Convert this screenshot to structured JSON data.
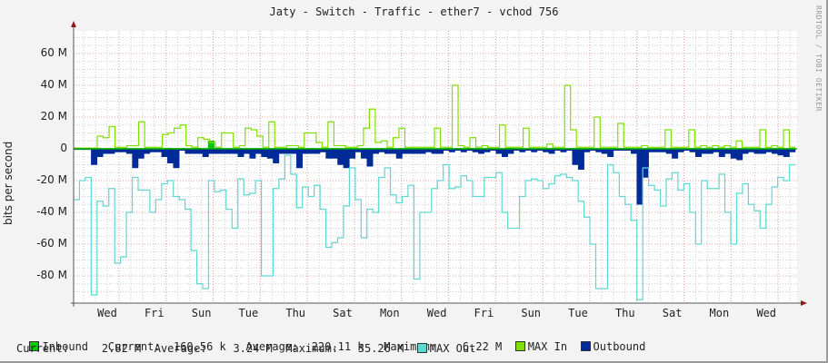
{
  "title": "Jaty - Switch - Traffic - ether7 - vchod 756",
  "watermark": "RRDTOOL / TOBI OETIKER",
  "chart_data": {
    "type": "area",
    "title": "Jaty - Switch - Traffic - ether7 - vchod 756",
    "xlabel": "",
    "ylabel": "bits per second",
    "ylim": [
      -95000000,
      72000000
    ],
    "grid": true,
    "legend_position": "bottom",
    "y_ticks": [
      "60 M",
      "40 M",
      "20 M",
      "0",
      "-20 M",
      "-40 M",
      "-60 M",
      "-80 M"
    ],
    "x_ticks": [
      "Wed",
      "Fri",
      "Sun",
      "Tue",
      "Thu",
      "Sat",
      "Mon",
      "Wed",
      "Fri",
      "Sun",
      "Tue",
      "Thu",
      "Sat",
      "Mon",
      "Wed"
    ],
    "step_note": "values in M bits/s, one per ~6.5px step (~6h), outbound shown below zero",
    "series": [
      {
        "name": "Inbound",
        "color": "#00cc00",
        "type": "area",
        "values": [
          0.3,
          0.3,
          0.3,
          0.3,
          0.3,
          0.3,
          0.3,
          0.3,
          0.3,
          0.3,
          0.3,
          0.3,
          0.3,
          0.3,
          0.3,
          0.5,
          0.3,
          0.3,
          0.3,
          0.3,
          0.5,
          0.3,
          5,
          0.5,
          0.3,
          0.3,
          0.3,
          0.3,
          0.3,
          0.3,
          0.3,
          0.3,
          0.3,
          0.3,
          0.3,
          0.3,
          0.3,
          0.3,
          0.3,
          0.3,
          0.3,
          0.3,
          0.3,
          0.3,
          0.3,
          0.3,
          0.3,
          0.3,
          0.3,
          0.3,
          0.3,
          0.3,
          0.3,
          0.3,
          0.3,
          0.3,
          0.3,
          0.3,
          0.3,
          0.3,
          0.3,
          0.3,
          0.3,
          0.3,
          0.3,
          0.3,
          0.3,
          0.3,
          0.3,
          0.3,
          0.3,
          0.5,
          0.3,
          0.3,
          0.3,
          0.3,
          0.3,
          0.3,
          0.3,
          0.3,
          0.3,
          0.3,
          0.3,
          0.3,
          0.3,
          0.3,
          0.3,
          0.3,
          0.3,
          0.3,
          0.3,
          0.3,
          0.3,
          0.3,
          0.3,
          0.3,
          0.3,
          0.3,
          0.3,
          0.3,
          0.3,
          0.3,
          0.3,
          0.3,
          0.3,
          0.3,
          0.3,
          0.3,
          0.3,
          0.3,
          0.3,
          0.3,
          0.3,
          0.3,
          0.3,
          0.3,
          0.3,
          0.3
        ]
      },
      {
        "name": "MAX In",
        "color": "#7fe000",
        "type": "line",
        "values": [
          0.5,
          0.5,
          0.5,
          0.5,
          8,
          7,
          14,
          1,
          1,
          2,
          2,
          17,
          1,
          1,
          1,
          9,
          10,
          13,
          15,
          2,
          1,
          7,
          6,
          4,
          1,
          10,
          10,
          1,
          2,
          13,
          12,
          8,
          1,
          17,
          1,
          1,
          2,
          2,
          1,
          10,
          10,
          4,
          1,
          17,
          2,
          2,
          1,
          1,
          2,
          13,
          25,
          4,
          5,
          1,
          7,
          13,
          1,
          1,
          1,
          1,
          1,
          13,
          1,
          1,
          40,
          2,
          1,
          7,
          1,
          2,
          1,
          1,
          15,
          1,
          1,
          1,
          13,
          1,
          1,
          1,
          3,
          1,
          1,
          40,
          12,
          1,
          1,
          1,
          20,
          1,
          1,
          1,
          16,
          1,
          1,
          1,
          2,
          1,
          1,
          1,
          12,
          1,
          1,
          1,
          12,
          1,
          2,
          1,
          2,
          1,
          2,
          1,
          5,
          1,
          1,
          1,
          12,
          1,
          2,
          1,
          12,
          1
        ]
      },
      {
        "name": "Outbound",
        "color": "#002a97",
        "type": "area",
        "values": [
          -0.5,
          -0.5,
          -0.5,
          -10,
          -5,
          -3,
          -3,
          -2,
          -2,
          -3,
          -12,
          -6,
          -3,
          -2,
          -2,
          -5,
          -9,
          -12,
          -1,
          -3,
          -3,
          -3,
          -5,
          -3,
          -3,
          -3,
          -3,
          -3,
          -5,
          -3,
          -6,
          -3,
          -5,
          -6,
          -9,
          -3,
          -3,
          -3,
          -12,
          -3,
          -3,
          -3,
          -2,
          -6,
          -6,
          -10,
          -12,
          -6,
          -2,
          -6,
          -11,
          -3,
          -2,
          -3,
          -3,
          -6,
          -3,
          -3,
          -3,
          -3,
          -2,
          -3,
          -3,
          -1,
          -2,
          -1,
          -2,
          -1,
          -2,
          -3,
          -2,
          -1,
          -3,
          -5,
          -3,
          -1,
          -2,
          -1,
          -2,
          -1,
          -2,
          -3,
          -1,
          -2,
          -1,
          -10,
          -13,
          -2,
          -1,
          -2,
          -3,
          -5,
          -1,
          -1,
          -1,
          -3,
          -35,
          -18,
          -2,
          -2,
          -2,
          -3,
          -6,
          -2,
          -1,
          -2,
          -5,
          -3,
          -3,
          -2,
          -5,
          -3,
          -6,
          -7,
          -3,
          -2,
          -3,
          -3,
          -2,
          -3,
          -4,
          -5,
          -2
        ]
      },
      {
        "name": "MAX Out",
        "color": "#5fd7d2",
        "type": "line",
        "values": [
          -32,
          -20,
          -18,
          -92,
          -33,
          -36,
          -25,
          -72,
          -68,
          -40,
          -18,
          -26,
          -26,
          -40,
          -32,
          -22,
          -20,
          -30,
          -32,
          -38,
          -64,
          -85,
          -88,
          -20,
          -27,
          -26,
          -38,
          -50,
          -19,
          -29,
          -28,
          -20,
          -80,
          -80,
          -25,
          -19,
          -4,
          -16,
          -37,
          -24,
          -30,
          -23,
          -38,
          -62,
          -59,
          -56,
          -36,
          -12,
          -32,
          -56,
          -38,
          -40,
          -18,
          -12,
          -29,
          -34,
          -30,
          -23,
          -82,
          -40,
          -40,
          -25,
          -20,
          -10,
          -25,
          -24,
          -17,
          -20,
          -30,
          -30,
          -18,
          -18,
          -15,
          -40,
          -50,
          -50,
          -30,
          -20,
          -19,
          -20,
          -25,
          -22,
          -17,
          -16,
          -18,
          -20,
          -33,
          -43,
          -60,
          -88,
          -88,
          -10,
          -15,
          -30,
          -35,
          -45,
          -95,
          -12,
          -23,
          -26,
          -36,
          -19,
          -15,
          -26,
          -22,
          -40,
          -60,
          -20,
          -25,
          -25,
          -16,
          -40,
          -60,
          -28,
          -22,
          -35,
          -39,
          -50,
          -35,
          -24,
          -18,
          -20,
          -10
        ]
      }
    ]
  },
  "legend": {
    "row1": [
      {
        "name": "Inbound",
        "color": "#00cc00",
        "current_label": "Current:",
        "current": "160.56 k",
        "average_label": "Average:",
        "average": "220.11 k",
        "maximum_label": "Maximum:",
        "maximum": "6.22 M"
      },
      {
        "name": "MAX In",
        "color": "#7fe000"
      },
      {
        "name": "Outbound",
        "color": "#002a97"
      }
    ],
    "row2": {
      "current_label": "Current:",
      "current": "2.82 M",
      "average_label": "Average:",
      "average": "3.24 M",
      "maximum_label": "Maximum:",
      "maximum": "35.26 M",
      "max_out_name": "MAX Out",
      "max_out_color": "#5fd7d2"
    }
  },
  "colors": {
    "background": "#f3f3f3",
    "plot_bg": "#ffffff",
    "grid_minor": "#cccccc",
    "grid_major": "#e8a0a0",
    "axis": "#555555",
    "arrow": "#8b1a1a"
  }
}
